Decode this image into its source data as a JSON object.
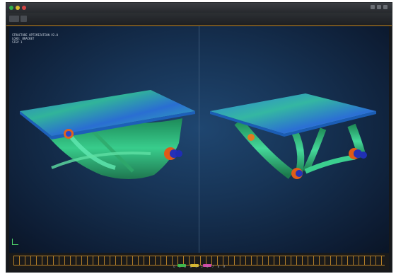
{
  "window": {
    "title_buttons": [
      "close-icon",
      "minimize-icon",
      "maximize-icon"
    ],
    "accent_color": "#c8871d"
  },
  "viewport": {
    "hud_lines": [
      "STRUCTURE OPTIMIZATION V2.0",
      "LOAD: BRACKET",
      "STEP 1"
    ],
    "background_color": "#173456"
  },
  "models": [
    {
      "name": "left-bracket-model",
      "colors": [
        "#2a7de0",
        "#36d08a",
        "#6de8c0"
      ]
    },
    {
      "name": "right-bracket-model",
      "colors": [
        "#2a7de0",
        "#36d08a",
        "#6de8c0"
      ]
    }
  ],
  "timeline": {
    "labels": [
      "0",
      "1",
      "2",
      "3",
      "4",
      "5",
      "6",
      "7",
      "8",
      "9"
    ],
    "marker_colors": [
      "#3cb84a",
      "#d8b92e",
      "#d04aa8"
    ]
  }
}
